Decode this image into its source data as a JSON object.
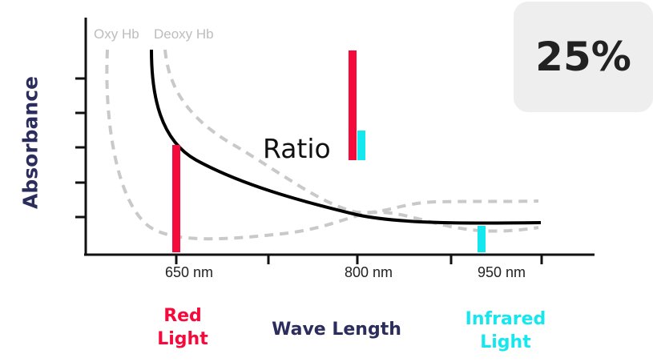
{
  "percentage": "25%",
  "colors": {
    "axis": "#111111",
    "oxy_curve": "#c9c9c9",
    "deoxy_curve": "#c9c9c9",
    "main_curve": "#000000",
    "red": "#f50a3c",
    "cyan": "#15e7ee",
    "ylabel": "#2b2d5c",
    "box_bg": "#eeeeee"
  },
  "chart_data": {
    "type": "line",
    "xlabel": "Wave Length",
    "ylabel": "Absorbance",
    "x_ticks": [
      "650 nm",
      "800 nm",
      "950 nm"
    ],
    "series": [
      {
        "name": "Oxy Hb",
        "style": "dashed"
      },
      {
        "name": "Deoxy Hb",
        "style": "dashed"
      }
    ],
    "ratio_label": "Ratio",
    "bands": [
      {
        "label": "Red Light",
        "wavelength": "650 nm",
        "color": "red"
      },
      {
        "label": "Infrared Light",
        "wavelength": "950 nm",
        "color": "cyan"
      }
    ]
  },
  "labels": {
    "red_line1": "Red",
    "red_line2": "Light",
    "ir_line1": "Infrared",
    "ir_line2": "Light"
  }
}
